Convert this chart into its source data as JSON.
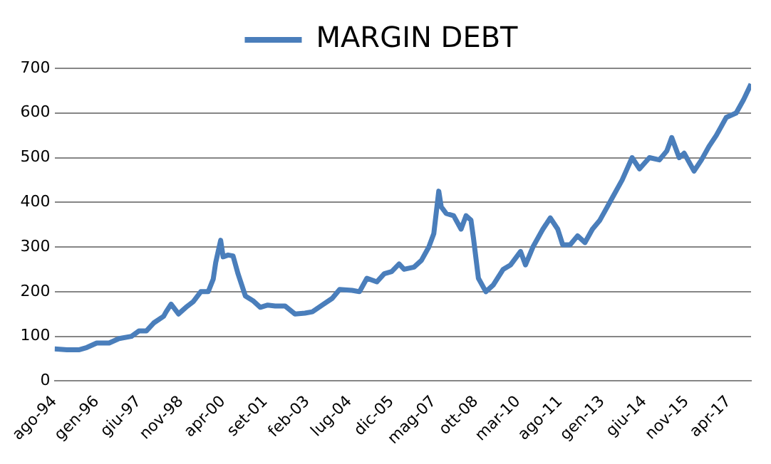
{
  "chart_data": {
    "type": "line",
    "legend": "top",
    "grid": "y",
    "marker": "none",
    "line_style": "solid",
    "x": [
      "1994-08",
      "1995-01",
      "1995-06",
      "1995-09",
      "1996-01",
      "1996-06",
      "1996-10",
      "1997-03",
      "1997-06",
      "1997-09",
      "1997-12",
      "1998-04",
      "1998-05",
      "1998-07",
      "1998-10",
      "1999-01",
      "1999-04",
      "1999-07",
      "1999-10",
      "1999-12",
      "2000-01",
      "2000-03",
      "2000-04",
      "2000-06",
      "2000-08",
      "2000-10",
      "2001-01",
      "2001-04",
      "2001-07",
      "2001-10",
      "2002-01",
      "2002-05",
      "2002-09",
      "2003-01",
      "2003-04",
      "2003-08",
      "2003-12",
      "2004-03",
      "2004-08",
      "2004-11",
      "2005-02",
      "2005-06",
      "2005-09",
      "2005-12",
      "2006-03",
      "2006-05",
      "2006-09",
      "2006-12",
      "2007-03",
      "2007-05",
      "2007-07",
      "2007-08",
      "2007-10",
      "2008-01",
      "2008-04",
      "2008-06",
      "2008-08",
      "2008-09",
      "2008-11",
      "2009-02",
      "2009-05",
      "2009-09",
      "2009-12",
      "2010-04",
      "2010-06",
      "2010-09",
      "2011-01",
      "2011-04",
      "2011-07",
      "2011-09",
      "2011-12",
      "2012-03",
      "2012-06",
      "2012-09",
      "2012-12",
      "2013-03",
      "2013-05",
      "2013-09",
      "2014-01",
      "2014-04",
      "2014-08",
      "2014-12",
      "2015-03",
      "2015-05",
      "2015-08",
      "2015-10",
      "2016-02",
      "2016-05",
      "2016-08",
      "2016-11",
      "2017-03",
      "2017-07",
      "2017-10",
      "2018-01"
    ],
    "series": [
      {
        "name": "MARGIN DEBT",
        "color": "#4a7ebb",
        "values": [
          72,
          70,
          70,
          75,
          85,
          85,
          95,
          100,
          112,
          112,
          130,
          145,
          155,
          172,
          150,
          165,
          178,
          200,
          200,
          228,
          265,
          315,
          278,
          282,
          280,
          240,
          190,
          180,
          165,
          170,
          168,
          168,
          150,
          152,
          155,
          170,
          185,
          205,
          203,
          200,
          230,
          222,
          240,
          245,
          262,
          250,
          255,
          270,
          300,
          330,
          425,
          390,
          375,
          370,
          340,
          370,
          360,
          320,
          230,
          200,
          215,
          250,
          260,
          290,
          260,
          300,
          340,
          365,
          340,
          305,
          305,
          325,
          310,
          340,
          360,
          390,
          410,
          450,
          500,
          475,
          500,
          495,
          515,
          545,
          500,
          510,
          470,
          495,
          525,
          550,
          590,
          600,
          630,
          665
        ]
      }
    ],
    "xlim": [
      "1994-08",
      "2018-01"
    ],
    "xticks": [
      {
        "value": "1994-08",
        "label": "ago-94"
      },
      {
        "value": "1996-01",
        "label": "gen-96"
      },
      {
        "value": "1997-06",
        "label": "giu-97"
      },
      {
        "value": "1998-11",
        "label": "nov-98"
      },
      {
        "value": "2000-04",
        "label": "apr-00"
      },
      {
        "value": "2001-09",
        "label": "set-01"
      },
      {
        "value": "2003-02",
        "label": "feb-03"
      },
      {
        "value": "2004-07",
        "label": "lug-04"
      },
      {
        "value": "2005-12",
        "label": "dic-05"
      },
      {
        "value": "2007-05",
        "label": "mag-07"
      },
      {
        "value": "2008-10",
        "label": "ott-08"
      },
      {
        "value": "2010-03",
        "label": "mar-10"
      },
      {
        "value": "2011-08",
        "label": "ago-11"
      },
      {
        "value": "2013-01",
        "label": "gen-13"
      },
      {
        "value": "2014-06",
        "label": "giu-14"
      },
      {
        "value": "2015-11",
        "label": "nov-15"
      },
      {
        "value": "2017-04",
        "label": "apr-17"
      }
    ],
    "ylim": [
      0,
      700
    ],
    "yticks": [
      0,
      100,
      200,
      300,
      400,
      500,
      600,
      700
    ]
  }
}
